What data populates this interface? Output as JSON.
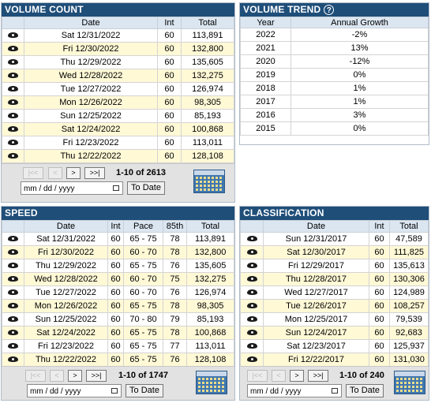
{
  "volume_count": {
    "title": "VOLUME COUNT",
    "columns": [
      "",
      "Date",
      "Int",
      "Total"
    ],
    "rows": [
      [
        "Sat 12/31/2022",
        "60",
        "113,891"
      ],
      [
        "Fri 12/30/2022",
        "60",
        "132,800"
      ],
      [
        "Thu 12/29/2022",
        "60",
        "135,605"
      ],
      [
        "Wed 12/28/2022",
        "60",
        "132,275"
      ],
      [
        "Tue 12/27/2022",
        "60",
        "126,974"
      ],
      [
        "Mon 12/26/2022",
        "60",
        "98,305"
      ],
      [
        "Sun 12/25/2022",
        "60",
        "85,193"
      ],
      [
        "Sat 12/24/2022",
        "60",
        "100,868"
      ],
      [
        "Fri 12/23/2022",
        "60",
        "113,011"
      ],
      [
        "Thu 12/22/2022",
        "60",
        "128,108"
      ]
    ],
    "pager": {
      "first": "|<<",
      "prev": "<",
      "next": ">",
      "last": ">>|",
      "count": "1-10 of 2613"
    },
    "date_placeholder": "mm / dd / yyyy",
    "to_date": "To Date"
  },
  "volume_trend": {
    "title": "VOLUME TREND",
    "help": "?",
    "columns": [
      "Year",
      "Annual Growth"
    ],
    "rows": [
      [
        "2022",
        "-2%"
      ],
      [
        "2021",
        "13%"
      ],
      [
        "2020",
        "-12%"
      ],
      [
        "2019",
        "0%"
      ],
      [
        "2018",
        "1%"
      ],
      [
        "2017",
        "1%"
      ],
      [
        "2016",
        "3%"
      ],
      [
        "2015",
        "0%"
      ]
    ]
  },
  "speed": {
    "title": "SPEED",
    "columns": [
      "",
      "Date",
      "Int",
      "Pace",
      "85th",
      "Total"
    ],
    "rows": [
      [
        "Sat 12/31/2022",
        "60",
        "65 - 75",
        "78",
        "113,891"
      ],
      [
        "Fri 12/30/2022",
        "60",
        "60 - 70",
        "78",
        "132,800"
      ],
      [
        "Thu 12/29/2022",
        "60",
        "65 - 75",
        "76",
        "135,605"
      ],
      [
        "Wed 12/28/2022",
        "60",
        "60 - 70",
        "75",
        "132,275"
      ],
      [
        "Tue 12/27/2022",
        "60",
        "60 - 70",
        "76",
        "126,974"
      ],
      [
        "Mon 12/26/2022",
        "60",
        "65 - 75",
        "78",
        "98,305"
      ],
      [
        "Sun 12/25/2022",
        "60",
        "70 - 80",
        "79",
        "85,193"
      ],
      [
        "Sat 12/24/2022",
        "60",
        "65 - 75",
        "78",
        "100,868"
      ],
      [
        "Fri 12/23/2022",
        "60",
        "65 - 75",
        "77",
        "113,011"
      ],
      [
        "Thu 12/22/2022",
        "60",
        "65 - 75",
        "76",
        "128,108"
      ]
    ],
    "pager": {
      "first": "|<<",
      "prev": "<",
      "next": ">",
      "last": ">>|",
      "count": "1-10 of 1747"
    },
    "date_placeholder": "mm / dd / yyyy",
    "to_date": "To Date"
  },
  "classification": {
    "title": "CLASSIFICATION",
    "columns": [
      "",
      "Date",
      "Int",
      "Total"
    ],
    "rows": [
      [
        "Sun 12/31/2017",
        "60",
        "47,589"
      ],
      [
        "Sat 12/30/2017",
        "60",
        "111,825"
      ],
      [
        "Fri 12/29/2017",
        "60",
        "135,613"
      ],
      [
        "Thu 12/28/2017",
        "60",
        "130,306"
      ],
      [
        "Wed 12/27/2017",
        "60",
        "124,989"
      ],
      [
        "Tue 12/26/2017",
        "60",
        "108,257"
      ],
      [
        "Mon 12/25/2017",
        "60",
        "79,539"
      ],
      [
        "Sun 12/24/2017",
        "60",
        "92,683"
      ],
      [
        "Sat 12/23/2017",
        "60",
        "125,937"
      ],
      [
        "Fri 12/22/2017",
        "60",
        "131,030"
      ]
    ],
    "pager": {
      "first": "|<<",
      "prev": "<",
      "next": ">",
      "last": ">>|",
      "count": "1-10 of 240"
    },
    "date_placeholder": "mm / dd / yyyy",
    "to_date": "To Date"
  },
  "row_icon": "eye-icon",
  "colors": {
    "title_bar": "#1f4e79",
    "header_bg": "#dbe6f1",
    "alt_row": "#fff9d6",
    "pager_bg": "#e2e2e2"
  }
}
